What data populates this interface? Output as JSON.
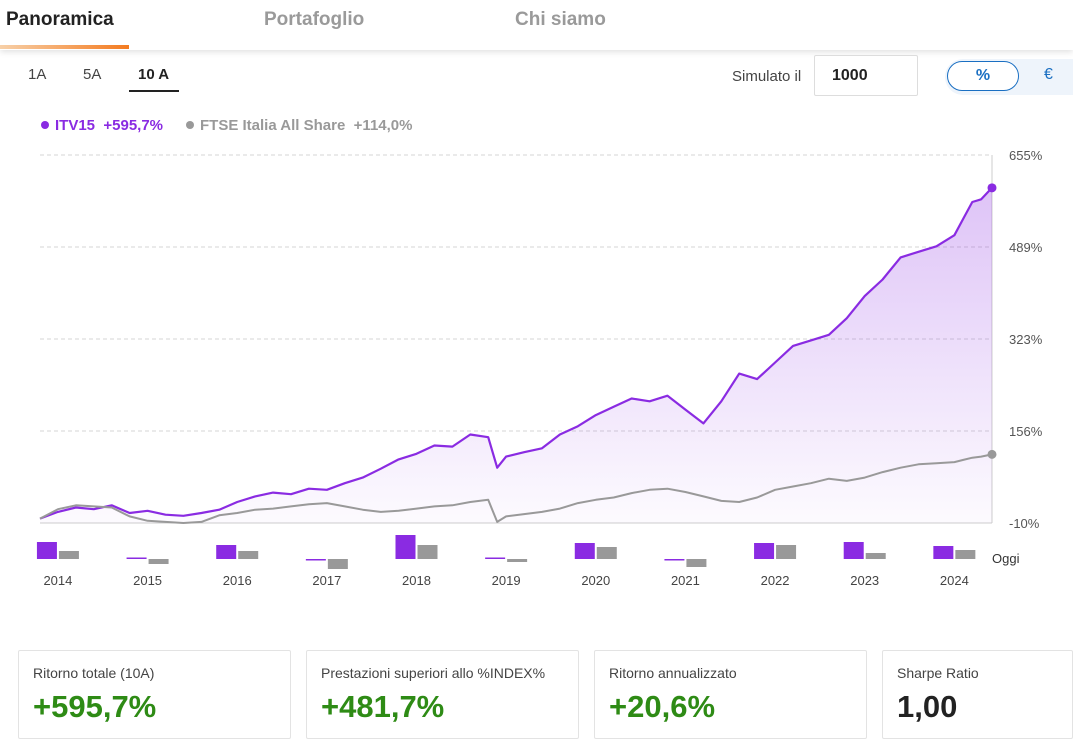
{
  "tabs": [
    {
      "label": "Panoramica",
      "active": true
    },
    {
      "label": "Portafoglio",
      "active": false
    },
    {
      "label": "Chi siamo",
      "active": false
    }
  ],
  "periods": [
    {
      "label": "1A",
      "active": false
    },
    {
      "label": "5A",
      "active": false
    },
    {
      "label": "10 A",
      "active": true
    }
  ],
  "simulator": {
    "label": "Simulato il",
    "value": "1000"
  },
  "unit_toggle": {
    "percent": "%",
    "euro": "€",
    "selected": "%"
  },
  "legend": [
    {
      "name": "ITV15",
      "value": "+595,7%",
      "color": "#8a2be2"
    },
    {
      "name": "FTSE Italia All Share",
      "value": "+114,0%",
      "color": "#999999"
    }
  ],
  "chart_data": {
    "type": "line",
    "y_tick_labels": [
      "655%",
      "489%",
      "323%",
      "156%",
      "-10%"
    ],
    "ylim": [
      -10,
      655
    ],
    "x_tick_labels": [
      "2014",
      "2015",
      "2016",
      "2017",
      "2018",
      "2019",
      "2020",
      "2021",
      "2022",
      "2023",
      "2024"
    ],
    "today_label": "Oggi",
    "grid": "horizontal dashed",
    "series": [
      {
        "name": "ITV15",
        "color": "#8a2be2",
        "fill": true,
        "x": [
          2014.0,
          2014.2,
          2014.4,
          2014.6,
          2014.8,
          2015.0,
          2015.2,
          2015.4,
          2015.6,
          2015.8,
          2016.0,
          2016.2,
          2016.4,
          2016.6,
          2016.8,
          2017.0,
          2017.2,
          2017.4,
          2017.6,
          2017.8,
          2018.0,
          2018.2,
          2018.4,
          2018.6,
          2018.8,
          2019.0,
          2019.1,
          2019.2,
          2019.4,
          2019.6,
          2019.8,
          2020.0,
          2020.2,
          2020.4,
          2020.6,
          2020.8,
          2021.0,
          2021.2,
          2021.4,
          2021.6,
          2021.8,
          2022.0,
          2022.2,
          2022.4,
          2022.6,
          2022.8,
          2023.0,
          2023.2,
          2023.4,
          2023.6,
          2023.8,
          2024.0,
          2024.2,
          2024.3,
          2024.4,
          2024.5,
          2024.62
        ],
        "values": [
          -2,
          10,
          18,
          15,
          22,
          8,
          12,
          5,
          3,
          8,
          14,
          28,
          38,
          45,
          42,
          52,
          50,
          62,
          72,
          88,
          105,
          115,
          130,
          128,
          150,
          145,
          90,
          110,
          118,
          125,
          150,
          165,
          185,
          200,
          215,
          210,
          220,
          195,
          170,
          210,
          260,
          250,
          280,
          310,
          320,
          330,
          360,
          400,
          430,
          470,
          480,
          490,
          510,
          540,
          570,
          575,
          595.7
        ]
      },
      {
        "name": "FTSE Italia All Share",
        "color": "#999999",
        "fill": false,
        "x": [
          2014.0,
          2014.2,
          2014.4,
          2014.6,
          2014.8,
          2015.0,
          2015.2,
          2015.4,
          2015.6,
          2015.8,
          2016.0,
          2016.2,
          2016.4,
          2016.6,
          2016.8,
          2017.0,
          2017.2,
          2017.4,
          2017.6,
          2017.8,
          2018.0,
          2018.2,
          2018.4,
          2018.6,
          2018.8,
          2019.0,
          2019.1,
          2019.2,
          2019.4,
          2019.6,
          2019.8,
          2020.0,
          2020.2,
          2020.4,
          2020.6,
          2020.8,
          2021.0,
          2021.2,
          2021.4,
          2021.6,
          2021.8,
          2022.0,
          2022.2,
          2022.4,
          2022.6,
          2022.8,
          2023.0,
          2023.2,
          2023.4,
          2023.6,
          2023.8,
          2024.0,
          2024.2,
          2024.3,
          2024.4,
          2024.5,
          2024.62
        ],
        "values": [
          -2,
          15,
          22,
          20,
          18,
          2,
          -6,
          -8,
          -10,
          -8,
          4,
          8,
          14,
          16,
          20,
          24,
          26,
          20,
          14,
          10,
          12,
          16,
          20,
          22,
          28,
          32,
          -8,
          2,
          6,
          10,
          16,
          26,
          32,
          36,
          44,
          50,
          52,
          46,
          38,
          30,
          28,
          36,
          50,
          56,
          62,
          70,
          66,
          72,
          82,
          90,
          96,
          98,
          100,
          104,
          108,
          110,
          114
        ]
      }
    ],
    "bars": [
      {
        "year": "2014",
        "itv15": 17,
        "ftse": 8
      },
      {
        "year": "2015",
        "itv15": 1,
        "ftse": -5
      },
      {
        "year": "2016",
        "itv15": 14,
        "ftse": 8
      },
      {
        "year": "2017",
        "itv15": -1,
        "ftse": -10
      },
      {
        "year": "2018",
        "itv15": 24,
        "ftse": 14
      },
      {
        "year": "2019",
        "itv15": 1,
        "ftse": -3
      },
      {
        "year": "2020",
        "itv15": 16,
        "ftse": 12
      },
      {
        "year": "2021",
        "itv15": -1,
        "ftse": -8
      },
      {
        "year": "2022",
        "itv15": 16,
        "ftse": 14
      },
      {
        "year": "2023",
        "itv15": 17,
        "ftse": 6
      },
      {
        "year": "2024",
        "itv15": 13,
        "ftse": 9
      }
    ]
  },
  "cards": [
    {
      "label": "Ritorno totale (10A)",
      "value": "+595,7%",
      "color": "#2e8b15"
    },
    {
      "label": "Prestazioni superiori allo %INDEX%",
      "value": "+481,7%",
      "color": "#2e8b15"
    },
    {
      "label": "Ritorno annualizzato",
      "value": "+20,6%",
      "color": "#2e8b15"
    },
    {
      "label": "Sharpe Ratio",
      "value": "1,00",
      "color": "#222222"
    }
  ]
}
